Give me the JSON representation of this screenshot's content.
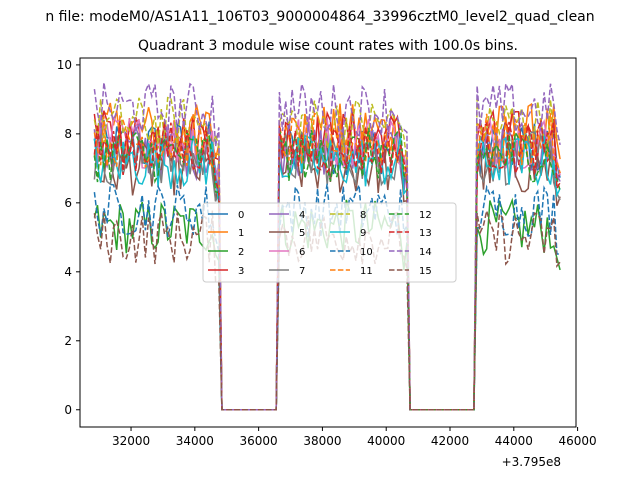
{
  "chart_data": {
    "type": "line",
    "suptitle": "n file: modeM0/AS1A11_106T03_9000004864_33996cztM0_level2_quad_clean",
    "title": "Quadrant 3 module wise count rates with 100.0s bins.",
    "xlabel": "",
    "ylabel": "",
    "x_offset_label": "+3.795e8",
    "xlim": [
      30400,
      45950
    ],
    "ylim": [
      -0.5,
      10.2
    ],
    "x_ticks": [
      32000,
      34000,
      36000,
      38000,
      40000,
      42000,
      44000,
      46000
    ],
    "x_tick_labels": [
      "32000",
      "34000",
      "36000",
      "38000",
      "40000",
      "42000",
      "44000",
      "46000"
    ],
    "y_ticks": [
      0,
      2,
      4,
      6,
      8,
      10
    ],
    "y_tick_labels": [
      "0",
      "2",
      "4",
      "6",
      "8",
      "10"
    ],
    "grid": false,
    "legend_position": "center",
    "legend_columns": 4,
    "active_segments": [
      [
        30850,
        34750
      ],
      [
        36650,
        40650
      ],
      [
        42850,
        45450
      ]
    ],
    "zero_level": 0,
    "series": [
      {
        "name": "0",
        "color": "#1f77b4",
        "linestyle": "solid",
        "mean": 7.6
      },
      {
        "name": "1",
        "color": "#ff7f0e",
        "linestyle": "solid",
        "mean": 8.1
      },
      {
        "name": "2",
        "color": "#2ca02c",
        "linestyle": "solid",
        "mean": 5.3
      },
      {
        "name": "3",
        "color": "#d62728",
        "linestyle": "solid",
        "mean": 7.9
      },
      {
        "name": "4",
        "color": "#9467bd",
        "linestyle": "solid",
        "mean": 7.5
      },
      {
        "name": "5",
        "color": "#8c564b",
        "linestyle": "solid",
        "mean": 7.0
      },
      {
        "name": "6",
        "color": "#e377c2",
        "linestyle": "solid",
        "mean": 7.8
      },
      {
        "name": "7",
        "color": "#7f7f7f",
        "linestyle": "solid",
        "mean": 7.3
      },
      {
        "name": "8",
        "color": "#bcbd22",
        "linestyle": "dashed",
        "mean": 8.3
      },
      {
        "name": "9",
        "color": "#17becf",
        "linestyle": "solid",
        "mean": 7.2
      },
      {
        "name": "10",
        "color": "#1f77b4",
        "linestyle": "dashed",
        "mean": 5.8
      },
      {
        "name": "11",
        "color": "#ff7f0e",
        "linestyle": "dashed",
        "mean": 7.8
      },
      {
        "name": "12",
        "color": "#2ca02c",
        "linestyle": "dashed",
        "mean": 7.4
      },
      {
        "name": "13",
        "color": "#d62728",
        "linestyle": "dashed",
        "mean": 7.6
      },
      {
        "name": "14",
        "color": "#9467bd",
        "linestyle": "dashed",
        "mean": 8.7
      },
      {
        "name": "15",
        "color": "#8c564b",
        "linestyle": "dashed",
        "mean": 5.0
      }
    ]
  }
}
